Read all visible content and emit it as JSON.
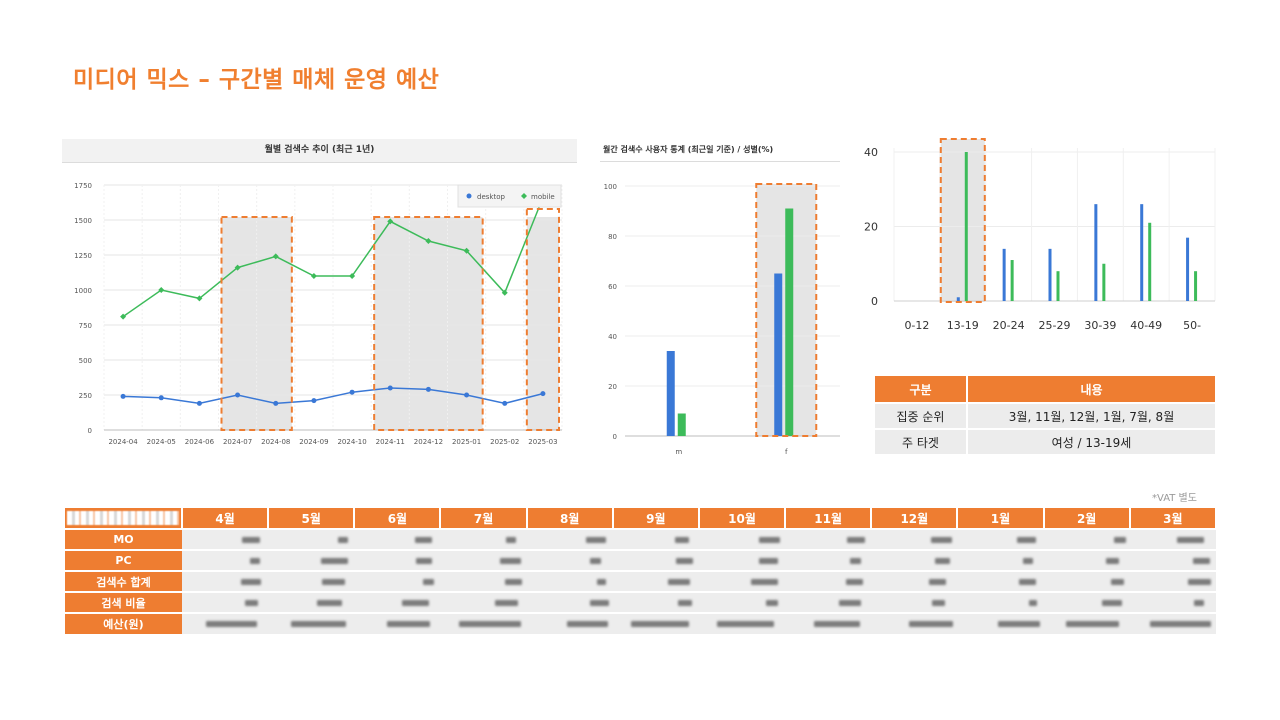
{
  "page": {
    "title": "미디어 믹스 – 구간별 매체 운영 예산",
    "vat_note": "*VAT 별도"
  },
  "colors": {
    "accent": "#ee7d31",
    "desktop": "#3a78d6",
    "mobile": "#3dbb5a",
    "highlight": "#e5e5e5"
  },
  "chart_data": [
    {
      "type": "line",
      "title": "월별 검색수 추이 (최근 1년)",
      "x": [
        "2024-04",
        "2024-05",
        "2024-06",
        "2024-07",
        "2024-08",
        "2024-09",
        "2024-10",
        "2024-11",
        "2024-12",
        "2025-01",
        "2025-02",
        "2025-03"
      ],
      "series": [
        {
          "name": "desktop",
          "values": [
            240,
            230,
            190,
            250,
            190,
            210,
            270,
            300,
            290,
            250,
            190,
            260
          ]
        },
        {
          "name": "mobile",
          "values": [
            810,
            1000,
            940,
            1160,
            1240,
            1100,
            1100,
            1490,
            1350,
            1280,
            980,
            1660
          ]
        }
      ],
      "ylim": [
        0,
        1750
      ],
      "yticks": [
        "0",
        "250",
        "500",
        "750",
        "1000",
        "1250",
        "1500",
        "1750"
      ],
      "legend": "top-right",
      "grid": true,
      "highlight_ranges": [
        [
          "2024-07",
          "2024-08"
        ],
        [
          "2024-11",
          "2025-01"
        ],
        [
          "2025-03",
          "2025-03"
        ]
      ]
    },
    {
      "type": "bar",
      "title": "월간 검색수 사용자 통계 (최근일 기준) / 성별(%)",
      "categories": [
        "m",
        "f"
      ],
      "series": [
        {
          "values": [
            34,
            65
          ]
        },
        {
          "values": [
            9,
            91
          ]
        }
      ],
      "ylim": [
        0,
        100
      ],
      "yticks": [
        "0",
        "20",
        "40",
        "60",
        "80",
        "100"
      ],
      "grid": true,
      "highlight_categories": [
        "f"
      ]
    },
    {
      "type": "bar",
      "categories": [
        "0-12",
        "13-19",
        "20-24",
        "25-29",
        "30-39",
        "40-49",
        "50-"
      ],
      "series": [
        {
          "values": [
            0,
            1,
            14,
            14,
            26,
            26,
            17
          ]
        },
        {
          "values": [
            0,
            40,
            11,
            8,
            10,
            21,
            8
          ]
        }
      ],
      "ylim": [
        0,
        40
      ],
      "yticks": [
        "0",
        "20",
        "40"
      ],
      "grid": true,
      "highlight_categories": [
        "13-19"
      ]
    }
  ],
  "summary_table": {
    "headers": [
      "구분",
      "내용"
    ],
    "rows": [
      [
        "집중 순위",
        "3월, 11월, 12월, 1월, 7월, 8월"
      ],
      [
        "주 타겟",
        "여성 / 13-19세"
      ]
    ]
  },
  "budget_table": {
    "months": [
      "4월",
      "5월",
      "6월",
      "7월",
      "8월",
      "9월",
      "10월",
      "11월",
      "12월",
      "1월",
      "2월",
      "3월"
    ],
    "row_labels": [
      "MO",
      "PC",
      "검색수 합계",
      "검색 비율",
      "예산(원)"
    ]
  }
}
